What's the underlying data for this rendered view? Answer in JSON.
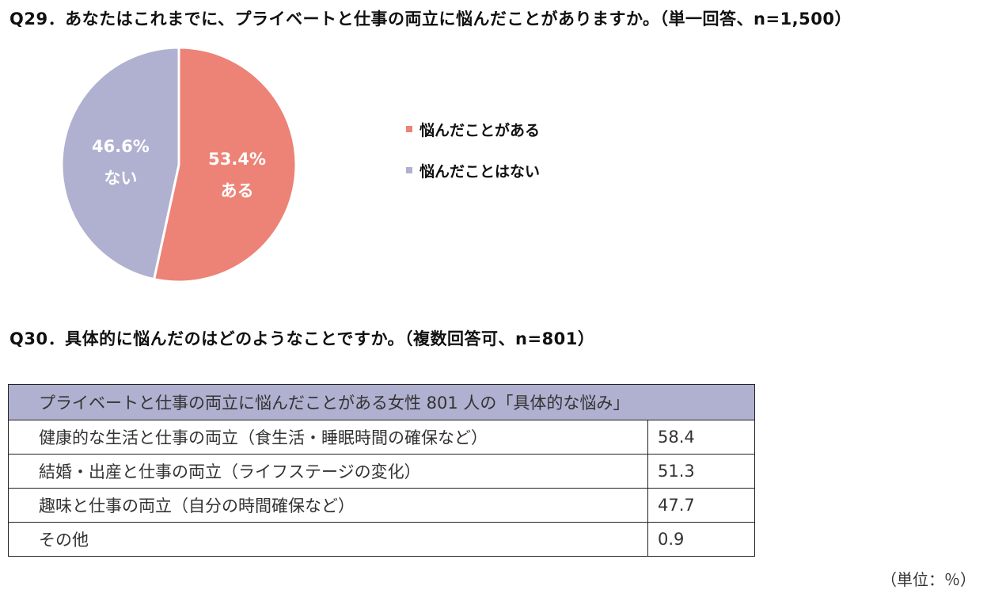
{
  "q29": {
    "title": "Q29．あなたはこれまでに、プライベートと仕事の両立に悩んだことがありますか。（単一回答、n=1,500）"
  },
  "chart_data": {
    "type": "pie",
    "slices": [
      {
        "name": "悩んだことがある",
        "short_label": "ある",
        "value": 53.4,
        "value_label": "53.4%",
        "color": "#ed8276"
      },
      {
        "name": "悩んだことはない",
        "short_label": "ない",
        "value": 46.6,
        "value_label": "46.6%",
        "color": "#b0b0d0"
      }
    ],
    "legend": [
      "悩んだことがある",
      "悩んだことはない"
    ],
    "legend_placement": "right"
  },
  "q30": {
    "title": "Q30．具体的に悩んだのはどのようなことですか。（複数回答可、n=801）",
    "table": {
      "header": "プライベートと仕事の両立に悩んだことがある女性 801 人の「具体的な悩み」",
      "header_color": "#b0b0d0",
      "rows": [
        {
          "label": "健康的な生活と仕事の両立（食生活・睡眠時間の確保など）",
          "value": "58.4"
        },
        {
          "label": "結婚・出産と仕事の両立（ライフステージの変化）",
          "value": "51.3"
        },
        {
          "label": "趣味と仕事の両立（自分の時間確保など）",
          "value": "47.7"
        },
        {
          "label": "その他",
          "value": "0.9"
        }
      ]
    },
    "unit_note": "（単位：％）"
  }
}
